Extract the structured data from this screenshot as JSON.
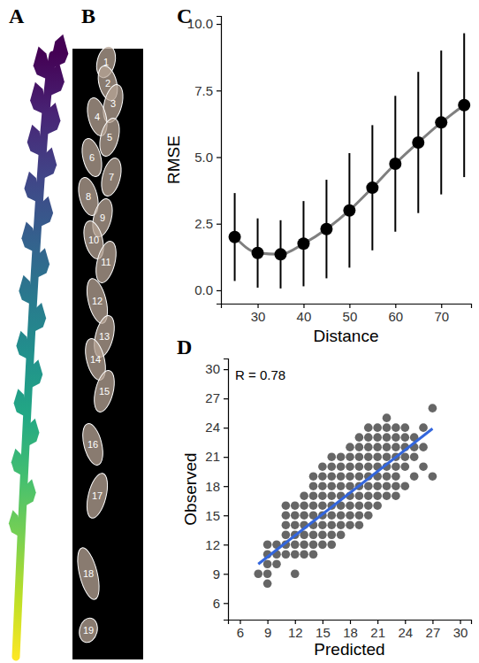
{
  "figure": {
    "panels": [
      {
        "panel_label": "A"
      },
      {
        "panel_label": "B",
        "labels": [
          1,
          2,
          3,
          4,
          5,
          6,
          7,
          8,
          9,
          10,
          11,
          12,
          13,
          14,
          15,
          16,
          17,
          18,
          19
        ]
      }
    ]
  },
  "chart_data": [
    {
      "type": "line",
      "panel_label": "C",
      "x_label": "Distance",
      "y_label": "RMSE",
      "x": [
        25,
        30,
        35,
        40,
        45,
        50,
        55,
        60,
        65,
        70,
        75
      ],
      "values": [
        2.0,
        1.4,
        1.35,
        1.75,
        2.3,
        3.0,
        3.85,
        4.75,
        5.55,
        6.3,
        6.95
      ],
      "error": [
        1.65,
        1.3,
        1.28,
        1.6,
        1.85,
        2.15,
        2.35,
        2.55,
        2.65,
        2.7,
        2.7
      ],
      "color": "#7f7f7f",
      "marker": "circle",
      "xlim": [
        22,
        76.5
      ],
      "xticks": [
        30,
        40,
        50,
        60,
        70
      ],
      "ylim": [
        -0.5,
        10.3
      ],
      "yticks": [
        {
          "value": 0,
          "label": "0.0"
        },
        {
          "value": 2.5,
          "label": "2.5"
        },
        {
          "value": 5,
          "label": "5.0"
        },
        {
          "value": 7.5,
          "label": "7.5"
        },
        {
          "value": 10,
          "label": "10.0"
        }
      ]
    },
    {
      "type": "scatter",
      "panel_label": "D",
      "x_label": "Predicted",
      "y_label": "Observed",
      "annotations": [
        "R = 0.78"
      ],
      "x": [
        8,
        9,
        9,
        9,
        9,
        9,
        10,
        10,
        10,
        11,
        11,
        11,
        11,
        11,
        11,
        12,
        12,
        12,
        12,
        12,
        12,
        12,
        13,
        13,
        13,
        13,
        13,
        13,
        13,
        14,
        14,
        14,
        14,
        14,
        14,
        14,
        14,
        14,
        15,
        15,
        15,
        15,
        15,
        15,
        15,
        15,
        15,
        16,
        16,
        16,
        16,
        16,
        16,
        16,
        16,
        16,
        16,
        17,
        17,
        17,
        17,
        17,
        17,
        17,
        17,
        17,
        18,
        18,
        18,
        18,
        18,
        18,
        18,
        18,
        18,
        19,
        19,
        19,
        19,
        19,
        19,
        19,
        19,
        19,
        19,
        20,
        20,
        20,
        20,
        20,
        20,
        20,
        20,
        20,
        20,
        21,
        21,
        21,
        21,
        21,
        21,
        21,
        21,
        21,
        22,
        22,
        22,
        22,
        22,
        22,
        22,
        22,
        22,
        23,
        23,
        23,
        23,
        23,
        23,
        23,
        23,
        24,
        24,
        24,
        24,
        24,
        24,
        25,
        25,
        25,
        25,
        26,
        26,
        26,
        27,
        27
      ],
      "y": [
        9,
        8,
        9,
        10,
        11,
        12,
        10,
        11,
        12,
        11,
        12,
        13,
        14,
        15,
        16,
        9,
        11,
        12,
        13,
        14,
        15,
        16,
        11,
        12,
        13,
        14,
        15,
        16,
        17,
        11,
        12,
        13,
        14,
        15,
        16,
        17,
        18,
        19,
        12,
        13,
        14,
        15,
        16,
        17,
        18,
        19,
        20,
        12,
        13,
        14,
        15,
        16,
        17,
        18,
        19,
        20,
        21,
        13,
        14,
        15,
        16,
        17,
        18,
        19,
        20,
        21,
        14,
        15,
        16,
        17,
        18,
        19,
        20,
        21,
        22,
        14,
        15,
        16,
        17,
        18,
        19,
        20,
        21,
        22,
        23,
        15,
        16,
        17,
        18,
        19,
        20,
        21,
        22,
        23,
        24,
        16,
        17,
        18,
        19,
        20,
        21,
        22,
        23,
        24,
        17,
        18,
        19,
        20,
        21,
        22,
        23,
        24,
        25,
        17,
        18,
        19,
        20,
        21,
        22,
        23,
        24,
        18,
        20,
        21,
        22,
        23,
        24,
        19,
        21,
        22,
        23,
        20,
        22,
        24,
        19,
        26
      ],
      "color": "#000000",
      "marker": "circle",
      "trend_line": {
        "x": [
          8,
          27
        ],
        "y": [
          10.0,
          23.9
        ],
        "color": "#3366dd"
      },
      "xlim": [
        4.7,
        31.2
      ],
      "xticks": [
        6,
        9,
        12,
        15,
        18,
        21,
        24,
        27,
        30
      ],
      "ylim": [
        4.3,
        31.1
      ],
      "yticks": [
        6,
        9,
        12,
        15,
        18,
        21,
        24,
        27,
        30
      ]
    }
  ]
}
